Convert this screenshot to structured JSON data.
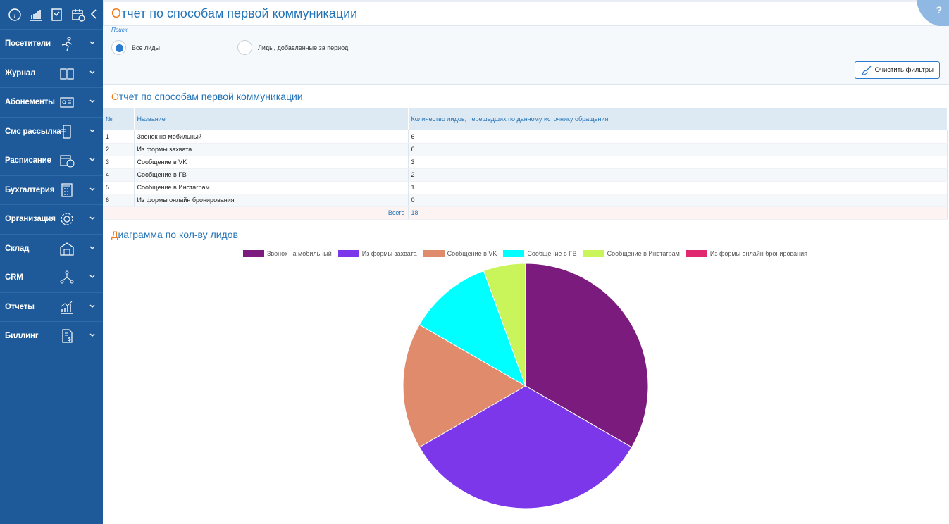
{
  "sidebar": {
    "items": [
      {
        "label": "Посетители",
        "icon": "runner-icon"
      },
      {
        "label": "Журнал",
        "icon": "book-icon"
      },
      {
        "label": "Абонементы",
        "icon": "card-icon"
      },
      {
        "label": "Смс рассылка",
        "icon": "phone-icon"
      },
      {
        "label": "Расписание",
        "icon": "calendar-clock-icon"
      },
      {
        "label": "Бухгалтерия",
        "icon": "calculator-icon"
      },
      {
        "label": "Организация",
        "icon": "gear-icon"
      },
      {
        "label": "Склад",
        "icon": "warehouse-icon"
      },
      {
        "label": "CRM",
        "icon": "network-icon"
      },
      {
        "label": "Отчеты",
        "icon": "chart-icon"
      },
      {
        "label": "Биллинг",
        "icon": "invoice-icon"
      }
    ]
  },
  "header": {
    "title_first": "О",
    "title_rest": "тчет по способам первой коммуникации",
    "help": "?"
  },
  "filters": {
    "search_label": "Поиск",
    "radio_all": "Все лиды",
    "radio_period": "Лиды, добавленные за период",
    "clear_button": "Очистить фильтры"
  },
  "report": {
    "title_first": "О",
    "title_rest": "тчет по способам первой коммуникации",
    "columns": [
      "№",
      "Название",
      "Количество лидов, перешедших по данному источнику обращения"
    ],
    "rows": [
      [
        "1",
        "Звонок на мобильный",
        "6"
      ],
      [
        "2",
        "Из формы захвата",
        "6"
      ],
      [
        "3",
        "Сообщение в VK",
        "3"
      ],
      [
        "4",
        "Сообщение в FB",
        "2"
      ],
      [
        "5",
        "Сообщение в Инстаграм",
        "1"
      ],
      [
        "6",
        "Из формы онлайн бронирования",
        "0"
      ]
    ],
    "total_label": "Всего",
    "total_value": "18"
  },
  "diagram": {
    "title_first": "Д",
    "title_rest": "иаграмма по кол-ву лидов"
  },
  "chart_data": {
    "type": "pie",
    "categories": [
      "Звонок на мобильный",
      "Из формы захвата",
      "Сообщение в VK",
      "Сообщение в FB",
      "Сообщение в Инстаграм",
      "Из формы онлайн бронирования"
    ],
    "values": [
      6,
      6,
      3,
      2,
      1,
      0
    ],
    "colors": [
      "#7b1b7e",
      "#7d37ea",
      "#e08b6c",
      "#00ffff",
      "#c9f55a",
      "#e0286e"
    ],
    "legend": "top"
  }
}
